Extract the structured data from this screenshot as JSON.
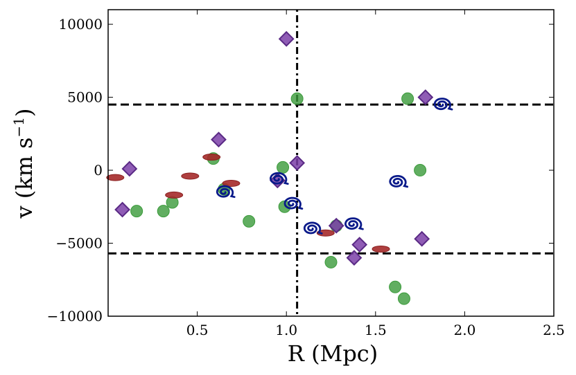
{
  "chart_data": {
    "type": "scatter",
    "title": "",
    "xlabel": "R (Mpc)",
    "ylabel_main": "v (km s",
    "ylabel_sup": "−1",
    "ylabel_close": ")",
    "xlim": [
      0.0,
      2.5
    ],
    "ylim": [
      -10000,
      11000
    ],
    "xticks": [
      {
        "value": 0.5,
        "label": "0.5"
      },
      {
        "value": 1.0,
        "label": "1.0"
      },
      {
        "value": 1.5,
        "label": "1.5"
      },
      {
        "value": 2.0,
        "label": "2.0"
      },
      {
        "value": 2.5,
        "label": "2.5"
      }
    ],
    "yticks": [
      {
        "value": 10000,
        "label": "10000"
      },
      {
        "value": 5000,
        "label": "5000"
      },
      {
        "value": 0,
        "label": "0"
      },
      {
        "value": -5000,
        "label": "−5000"
      },
      {
        "value": -10000,
        "label": "−10000"
      }
    ],
    "grid": false,
    "reference_lines": [
      {
        "orientation": "horizontal",
        "value": 4500,
        "style": "dashed"
      },
      {
        "orientation": "horizontal",
        "value": -5700,
        "style": "dashed"
      },
      {
        "orientation": "vertical",
        "value": 1.06,
        "style": "dash-dot"
      }
    ],
    "series": [
      {
        "marker": "circle",
        "color": "#3a9a3a",
        "points": [
          [
            0.16,
            -2800
          ],
          [
            0.31,
            -2800
          ],
          [
            0.36,
            -2200
          ],
          [
            0.59,
            800
          ],
          [
            0.65,
            -1300
          ],
          [
            0.79,
            -3500
          ],
          [
            0.98,
            200
          ],
          [
            0.99,
            -2500
          ],
          [
            1.06,
            4900
          ],
          [
            1.25,
            -6300
          ],
          [
            1.28,
            -3800
          ],
          [
            1.61,
            -8000
          ],
          [
            1.66,
            -8800
          ],
          [
            1.68,
            4900
          ],
          [
            1.75,
            0
          ]
        ]
      },
      {
        "marker": "diamond",
        "color": "#7b3fa8",
        "points": [
          [
            0.08,
            -2700
          ],
          [
            0.12,
            100
          ],
          [
            0.62,
            2100
          ],
          [
            0.95,
            -700
          ],
          [
            1.0,
            9000
          ],
          [
            1.06,
            500
          ],
          [
            1.28,
            -3800
          ],
          [
            1.38,
            -6000
          ],
          [
            1.41,
            -5100
          ],
          [
            1.76,
            -4700
          ],
          [
            1.78,
            5000
          ]
        ]
      },
      {
        "marker": "ellipse",
        "color": "#a52a2a",
        "points": [
          [
            0.04,
            -500
          ],
          [
            0.37,
            -1700
          ],
          [
            0.46,
            -400
          ],
          [
            0.58,
            900
          ],
          [
            0.69,
            -900
          ],
          [
            1.22,
            -4300
          ],
          [
            1.53,
            -5400
          ]
        ]
      },
      {
        "marker": "spiral",
        "color": "#0a1a8a",
        "points": [
          [
            0.65,
            -1500
          ],
          [
            0.95,
            -600
          ],
          [
            1.03,
            -2300
          ],
          [
            1.14,
            -4000
          ],
          [
            1.37,
            -3700
          ],
          [
            1.62,
            -800
          ],
          [
            1.87,
            4500
          ]
        ]
      }
    ]
  }
}
